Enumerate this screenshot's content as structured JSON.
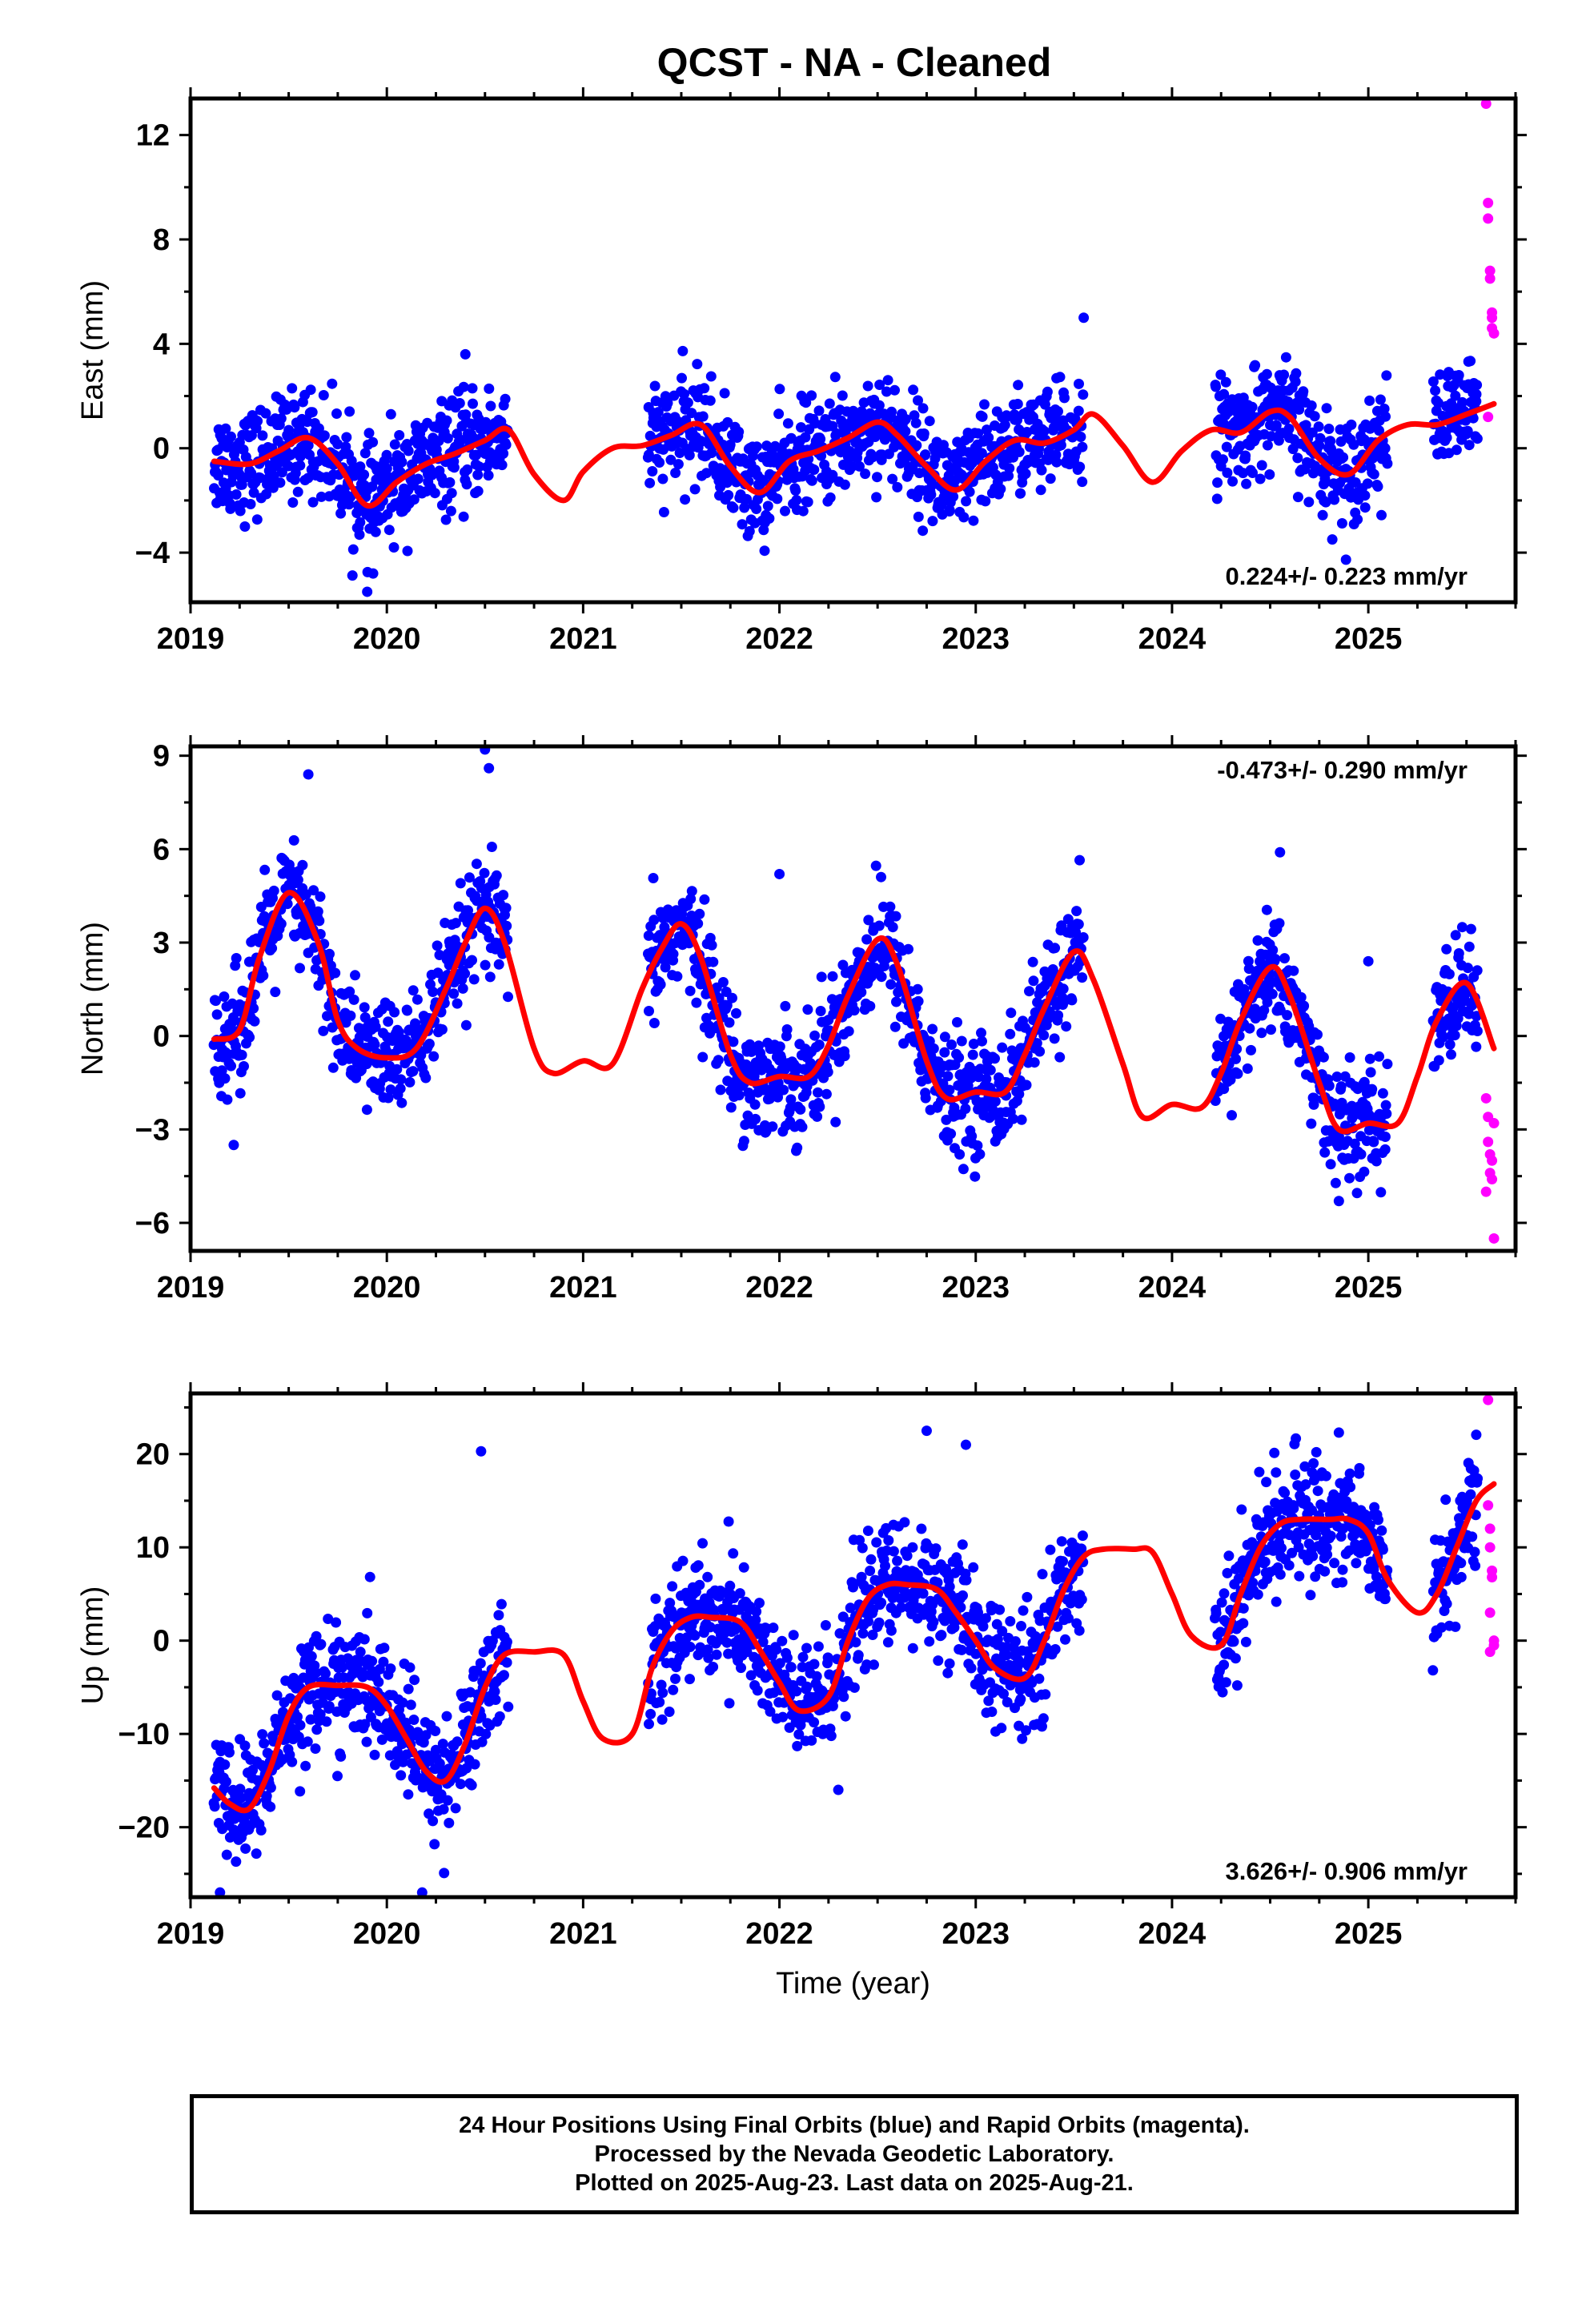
{
  "title": "QCST  - NA - Cleaned",
  "footer": {
    "line1": "24 Hour Positions Using Final Orbits (blue) and Rapid Orbits (magenta).",
    "line2": "Processed by the Nevada Geodetic Laboratory.",
    "line3": "Plotted on 2025-Aug-23. Last data on 2025-Aug-21."
  },
  "colors": {
    "final": "#0000ff",
    "rapid": "#ff00ff",
    "fit": "#ff0000"
  },
  "chart_data": [
    {
      "type": "scatter",
      "id": "east",
      "ylabel": "East (mm)",
      "xlabel": "",
      "xlim": [
        2019.0,
        2025.75
      ],
      "ylim": [
        -5.9,
        13.4
      ],
      "xticks": [
        2019,
        2020,
        2021,
        2022,
        2023,
        2024,
        2025
      ],
      "yticks": [
        -4,
        0,
        4,
        8,
        12
      ],
      "rate_text": "0.224+/- 0.223 mm/yr",
      "rate_position": "bottom-right",
      "segments": [
        [
          2019.12,
          2020.62
        ],
        [
          2021.33,
          2023.55
        ],
        [
          2024.22,
          2025.1
        ],
        [
          2025.33,
          2025.56
        ]
      ],
      "rapid_range": [
        2025.56,
        2025.64
      ],
      "fit": {
        "x": [
          2019.12,
          2019.3,
          2019.45,
          2019.6,
          2019.75,
          2019.9,
          2020.05,
          2020.2,
          2020.35,
          2020.5,
          2020.62,
          2020.75,
          2020.9,
          2021.0,
          2021.15,
          2021.3,
          2021.45,
          2021.6,
          2021.75,
          2021.9,
          2022.05,
          2022.2,
          2022.35,
          2022.5,
          2022.6,
          2022.75,
          2022.9,
          2023.05,
          2023.2,
          2023.35,
          2023.5,
          2023.6,
          2023.75,
          2023.9,
          2024.05,
          2024.2,
          2024.35,
          2024.5,
          2024.6,
          2024.75,
          2024.9,
          2025.05,
          2025.2,
          2025.35,
          2025.5,
          2025.64
        ],
        "y": [
          -0.5,
          -0.6,
          -0.1,
          0.4,
          -0.6,
          -2.2,
          -1.3,
          -0.6,
          -0.2,
          0.3,
          0.7,
          -1.0,
          -2.0,
          -0.9,
          0.0,
          0.1,
          0.5,
          0.9,
          -0.7,
          -1.7,
          -0.5,
          -0.1,
          0.4,
          1.0,
          0.5,
          -0.7,
          -1.6,
          -0.5,
          0.3,
          0.2,
          0.7,
          1.3,
          0.1,
          -1.3,
          -0.1,
          0.7,
          0.6,
          1.4,
          1.2,
          -0.4,
          -1.0,
          0.3,
          0.9,
          0.9,
          1.3,
          1.7
        ]
      },
      "scatter_sd": 1.0,
      "rapid": {
        "x": [
          2025.6,
          2025.61,
          2025.61,
          2025.62,
          2025.62,
          2025.63,
          2025.63,
          2025.63,
          2025.64,
          2025.61
        ],
        "y": [
          13.2,
          9.4,
          8.8,
          6.5,
          6.8,
          5.0,
          4.6,
          5.2,
          4.4,
          1.2
        ]
      },
      "outliers": {
        "x": [
          2020.4,
          2023.55,
          2019.9,
          2019.93
        ],
        "y": [
          3.6,
          5.0,
          -5.5,
          -4.8
        ]
      }
    },
    {
      "type": "scatter",
      "id": "north",
      "ylabel": "North (mm)",
      "xlabel": "",
      "xlim": [
        2019.0,
        2025.75
      ],
      "ylim": [
        -6.9,
        9.3
      ],
      "xticks": [
        2019,
        2020,
        2021,
        2022,
        2023,
        2024,
        2025
      ],
      "yticks": [
        -6,
        -3,
        0,
        3,
        6,
        9
      ],
      "rate_text": "-0.473+/- 0.290 mm/yr",
      "rate_position": "top-right",
      "segments": [
        [
          2019.12,
          2020.62
        ],
        [
          2021.33,
          2023.55
        ],
        [
          2024.22,
          2025.1
        ],
        [
          2025.33,
          2025.56
        ]
      ],
      "rapid_range": [
        2025.56,
        2025.64
      ],
      "fit": {
        "x": [
          2019.12,
          2019.25,
          2019.35,
          2019.5,
          2019.65,
          2019.75,
          2019.85,
          2020.0,
          2020.15,
          2020.3,
          2020.4,
          2020.5,
          2020.6,
          2020.75,
          2020.85,
          2021.0,
          2021.15,
          2021.3,
          2021.4,
          2021.5,
          2021.6,
          2021.75,
          2021.85,
          2022.0,
          2022.15,
          2022.25,
          2022.35,
          2022.5,
          2022.6,
          2022.75,
          2022.85,
          2023.0,
          2023.15,
          2023.25,
          2023.35,
          2023.5,
          2023.6,
          2023.75,
          2023.85,
          2024.0,
          2024.15,
          2024.25,
          2024.35,
          2024.5,
          2024.6,
          2024.75,
          2024.85,
          2025.0,
          2025.15,
          2025.25,
          2025.35,
          2025.5,
          2025.64
        ],
        "y": [
          -0.1,
          0.2,
          2.5,
          4.6,
          3.0,
          0.5,
          -0.4,
          -0.7,
          -0.4,
          1.5,
          3.0,
          4.1,
          3.0,
          -0.4,
          -1.2,
          -0.8,
          -0.9,
          1.5,
          2.8,
          3.6,
          2.5,
          -0.6,
          -1.5,
          -1.3,
          -1.3,
          -0.3,
          1.3,
          3.1,
          2.3,
          -0.8,
          -2.0,
          -1.8,
          -1.8,
          -0.6,
          0.9,
          2.7,
          1.8,
          -0.9,
          -2.6,
          -2.2,
          -2.3,
          -1.2,
          0.5,
          2.2,
          1.3,
          -1.5,
          -3.0,
          -2.8,
          -2.8,
          -1.3,
          0.5,
          1.7,
          -0.4
        ]
      },
      "scatter_sd": 0.9,
      "rapid": {
        "x": [
          2025.6,
          2025.61,
          2025.61,
          2025.62,
          2025.62,
          2025.63,
          2025.63,
          2025.64,
          2025.64,
          2025.6
        ],
        "y": [
          -2.0,
          -2.6,
          -3.4,
          -3.8,
          -4.4,
          -4.0,
          -4.6,
          -2.8,
          -6.5,
          -5.0
        ]
      },
      "outliers": {
        "x": [
          2019.22,
          2019.6,
          2020.5,
          2020.52,
          2022.0,
          2024.55,
          2025.0,
          2024.85
        ],
        "y": [
          -3.5,
          8.4,
          9.2,
          8.6,
          5.2,
          5.9,
          2.4,
          -5.3
        ]
      }
    },
    {
      "type": "scatter",
      "id": "up",
      "ylabel": "Up (mm)",
      "xlabel": "Time (year)",
      "xlim": [
        2019.0,
        2025.75
      ],
      "ylim": [
        -27.5,
        26.5
      ],
      "xticks": [
        2019,
        2020,
        2021,
        2022,
        2023,
        2024,
        2025
      ],
      "yticks": [
        -20,
        -10,
        0,
        10,
        20
      ],
      "rate_text": "3.626+/- 0.906 mm/yr",
      "rate_position": "bottom-right",
      "segments": [
        [
          2019.12,
          2020.62
        ],
        [
          2021.33,
          2023.55
        ],
        [
          2024.22,
          2025.1
        ],
        [
          2025.33,
          2025.56
        ]
      ],
      "rapid_range": [
        2025.56,
        2025.64
      ],
      "fit": {
        "x": [
          2019.12,
          2019.2,
          2019.3,
          2019.4,
          2019.5,
          2019.6,
          2019.75,
          2019.9,
          2020.0,
          2020.1,
          2020.2,
          2020.3,
          2020.4,
          2020.5,
          2020.6,
          2020.75,
          2020.9,
          2021.0,
          2021.1,
          2021.25,
          2021.35,
          2021.45,
          2021.55,
          2021.65,
          2021.8,
          2021.9,
          2022.0,
          2022.1,
          2022.25,
          2022.35,
          2022.45,
          2022.55,
          2022.65,
          2022.8,
          2022.9,
          2023.0,
          2023.1,
          2023.25,
          2023.35,
          2023.45,
          2023.55,
          2023.65,
          2023.8,
          2023.9,
          2024.0,
          2024.1,
          2024.25,
          2024.35,
          2024.45,
          2024.55,
          2024.65,
          2024.8,
          2024.9,
          2025.0,
          2025.1,
          2025.25,
          2025.35,
          2025.45,
          2025.55,
          2025.64
        ],
        "y": [
          -15.8,
          -17.5,
          -18.0,
          -14.0,
          -8.0,
          -5.0,
          -4.8,
          -5.0,
          -7.0,
          -10.5,
          -14.0,
          -15.0,
          -11.0,
          -5.0,
          -1.5,
          -1.2,
          -1.5,
          -6.5,
          -10.5,
          -10.0,
          -3.0,
          1.0,
          2.5,
          2.5,
          2.0,
          -1.0,
          -4.5,
          -7.5,
          -6.0,
          0.0,
          4.5,
          6.0,
          6.0,
          5.5,
          3.0,
          0.0,
          -3.0,
          -4.0,
          0.0,
          5.5,
          9.0,
          9.8,
          9.8,
          9.5,
          5.0,
          0.5,
          -0.5,
          5.0,
          10.0,
          12.5,
          13.0,
          13.0,
          13.0,
          11.5,
          6.5,
          3.0,
          5.0,
          10.0,
          15.0,
          16.8
        ]
      },
      "scatter_sd": 3.2,
      "rapid": {
        "x": [
          2025.61,
          2025.61,
          2025.62,
          2025.62,
          2025.63,
          2025.63,
          2025.62,
          2025.64,
          2025.62,
          2025.64
        ],
        "y": [
          25.8,
          14.5,
          12.0,
          10.0,
          7.5,
          6.8,
          3.0,
          0.0,
          -1.2,
          -0.5
        ]
      },
      "outliers": {
        "x": [
          2020.48,
          2022.75,
          2022.95,
          2024.85,
          2019.15,
          2020.18,
          2022.3
        ],
        "y": [
          20.3,
          22.5,
          21.0,
          22.3,
          -27.0,
          -27.0,
          -16.0
        ]
      }
    }
  ]
}
